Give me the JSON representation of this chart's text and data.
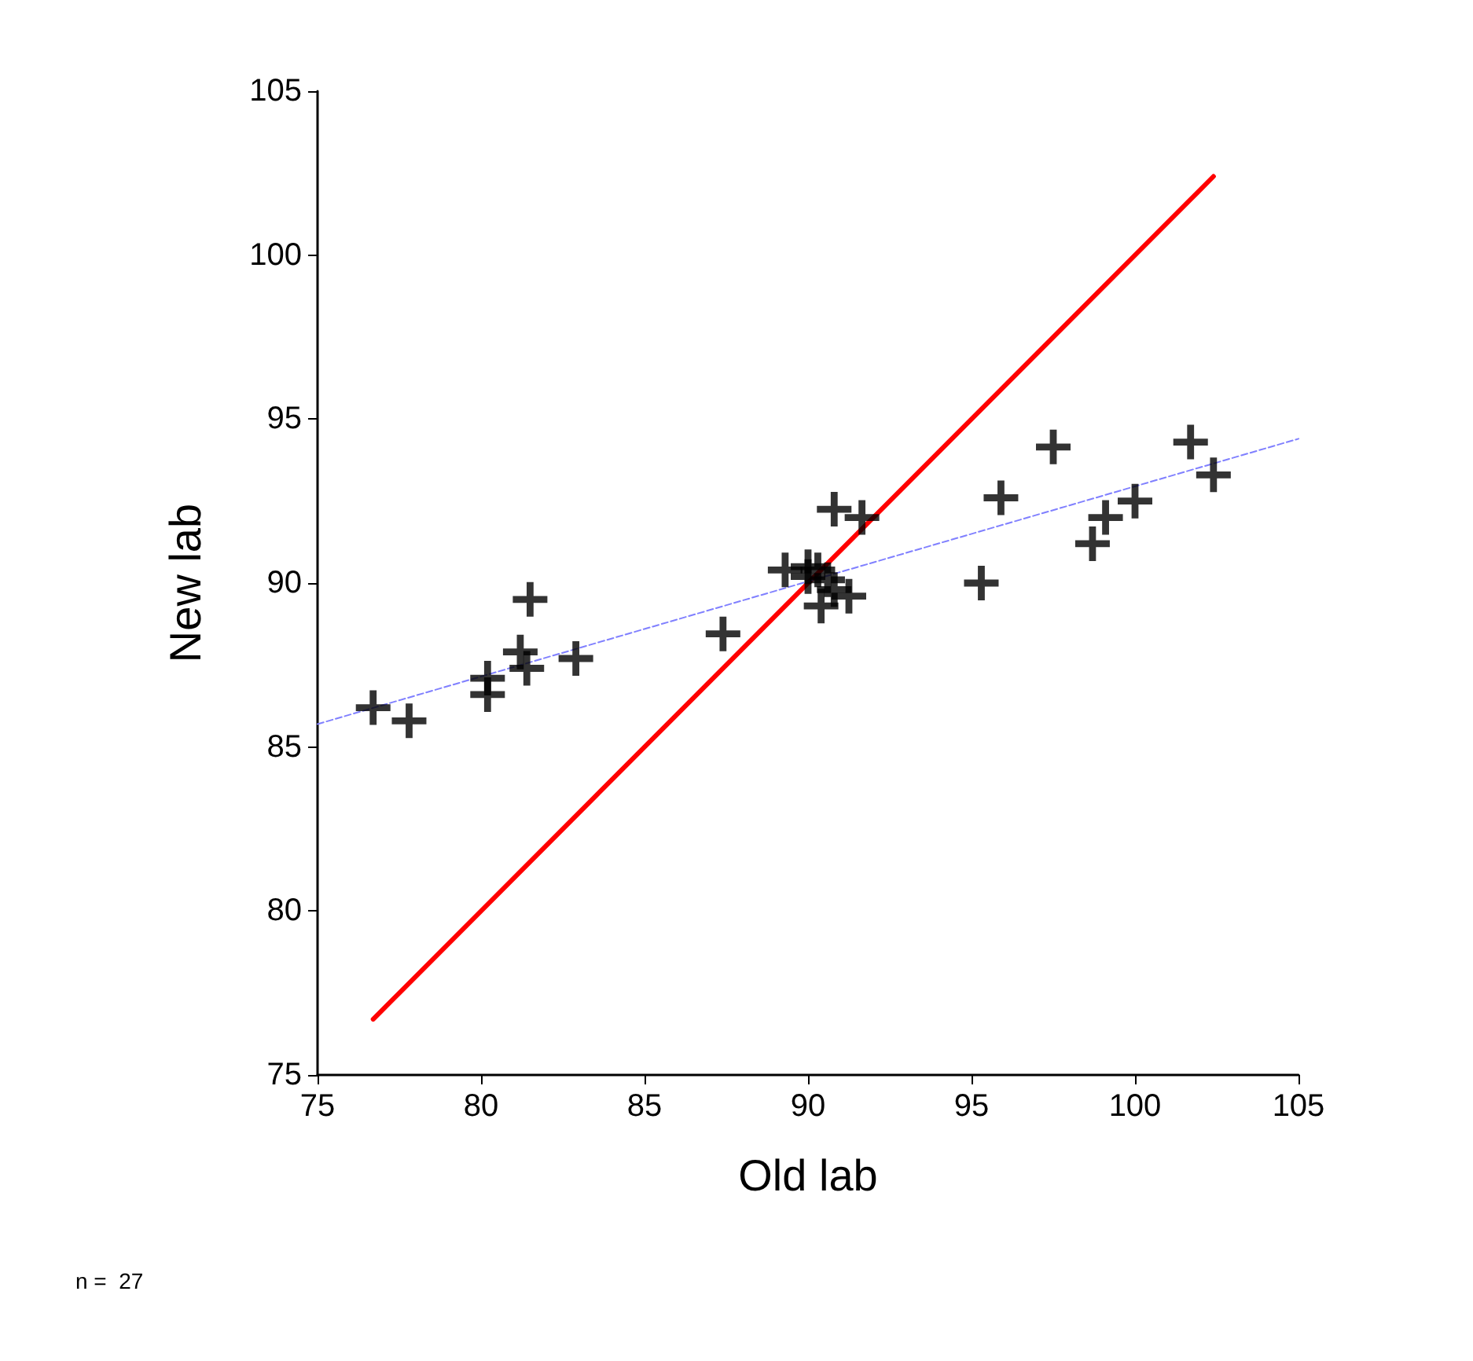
{
  "chart_data": {
    "type": "scatter",
    "xlabel": "Old lab",
    "ylabel": "New lab",
    "annotations": [
      "n =  27"
    ],
    "xlim": [
      75,
      105
    ],
    "xticks": [
      75,
      80,
      85,
      90,
      95,
      100,
      105
    ],
    "ylim": [
      75,
      105
    ],
    "yticks": [
      75,
      80,
      85,
      90,
      95,
      100,
      105
    ],
    "grid": false,
    "series": [
      {
        "color": "#000000",
        "marker": "cross",
        "x": [
          76.7,
          77.8,
          81.5,
          81.2,
          81.4,
          80.2,
          80.2,
          82.9,
          87.4,
          90.8,
          91.65,
          89.3,
          90.0,
          90.6,
          90.4,
          91.25,
          90.3,
          90.0,
          90.8,
          97.5,
          95.9,
          95.3,
          101.7,
          102.4,
          98.7,
          99.1,
          100.0
        ],
        "values": [
          86.2,
          85.8,
          89.5,
          87.9,
          87.4,
          87.1,
          86.6,
          87.7,
          88.45,
          92.25,
          92.0,
          90.4,
          90.5,
          90.1,
          89.3,
          89.6,
          90.4,
          90.2,
          89.8,
          94.15,
          92.6,
          90.0,
          94.3,
          93.3,
          91.2,
          92.0,
          92.5
        ]
      },
      {
        "type": "line",
        "color": "#ff0000",
        "marker": "none",
        "line_style": "solid",
        "x": [
          76.7,
          102.4
        ],
        "values": [
          76.7,
          102.4
        ]
      },
      {
        "type": "line",
        "color": "#8080ff",
        "marker": "none",
        "line_style": "dashed",
        "x": [
          75,
          105
        ],
        "values": [
          85.7,
          94.4
        ]
      }
    ]
  }
}
